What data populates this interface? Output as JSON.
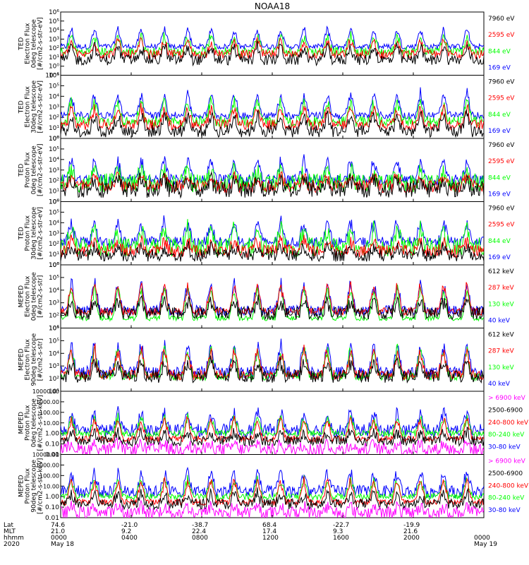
{
  "colors": {
    "black": "#000000",
    "red": "#ff0000",
    "green": "#00ff00",
    "blue": "#0000ff",
    "magenta": "#ff00ff"
  },
  "chart_data": {
    "type": "line",
    "title": "NOAA18",
    "grid": false,
    "footer": {
      "row_labels": [
        "Lat",
        "MLT",
        "hhmm",
        "2020"
      ],
      "ticks": [
        {
          "lat": "74.6",
          "mlt": "21.0",
          "hhmm": "0000",
          "date": "May 18"
        },
        {
          "lat": "-21.0",
          "mlt": "9.2",
          "hhmm": "0400",
          "date": ""
        },
        {
          "lat": "-38.7",
          "mlt": "22.4",
          "hhmm": "0800",
          "date": ""
        },
        {
          "lat": "68.4",
          "mlt": "17.4",
          "hhmm": "1200",
          "date": ""
        },
        {
          "lat": "-22.7",
          "mlt": "9.3",
          "hhmm": "1600",
          "date": ""
        },
        {
          "lat": "-19.9",
          "mlt": "21.6",
          "hhmm": "2000",
          "date": ""
        },
        {
          "lat": "",
          "mlt": "",
          "hhmm": "0000",
          "date": "May 19"
        }
      ]
    },
    "panels": [
      {
        "ylabel": [
          "TED",
          "Electron Flux",
          "0deg telescope",
          "[#/cm2-s-str-eV]"
        ],
        "log": true,
        "ylim": [
          0.1,
          1000000
        ],
        "ytick_labels": [
          "10⁻¹",
          "10⁰",
          "10¹",
          "10²",
          "10³",
          "10⁴",
          "10⁵",
          "10⁶"
        ],
        "series": [
          {
            "name": "7960 eV",
            "color": "black",
            "base": 5,
            "peak": 300,
            "noise": 0.6
          },
          {
            "name": "2595 eV",
            "color": "red",
            "base": 20,
            "peak": 1200,
            "noise": 0.5
          },
          {
            "name": "844 eV",
            "color": "green",
            "base": 40,
            "peak": 5000,
            "noise": 0.5
          },
          {
            "name": "169 eV",
            "color": "blue",
            "base": 150,
            "peak": 30000,
            "noise": 0.3
          }
        ]
      },
      {
        "ylabel": [
          "TED",
          "Electron Flux",
          "30deg telescope",
          "[#/cm2-s-str-eV]"
        ],
        "log": true,
        "ylim": [
          1,
          1000000
        ],
        "ytick_labels": [
          "10⁰",
          "10¹",
          "10²",
          "10³",
          "10⁴",
          "10⁵",
          "10⁶"
        ],
        "series": [
          {
            "name": "7960 eV",
            "color": "black",
            "base": 5,
            "peak": 300,
            "noise": 0.6
          },
          {
            "name": "2595 eV",
            "color": "red",
            "base": 20,
            "peak": 1500,
            "noise": 0.5
          },
          {
            "name": "844 eV",
            "color": "green",
            "base": 40,
            "peak": 8000,
            "noise": 0.5
          },
          {
            "name": "169 eV",
            "color": "blue",
            "base": 150,
            "peak": 40000,
            "noise": 0.35
          }
        ]
      },
      {
        "ylabel": [
          "TED",
          "Proton Flux",
          "0deg telescope",
          "[#/cm2-s-str-eV]"
        ],
        "log": true,
        "ylim": [
          1,
          1000000
        ],
        "ytick_labels": [
          "10⁰",
          "10¹",
          "10²",
          "10³",
          "10⁴",
          "10⁵",
          "10⁶"
        ],
        "series": [
          {
            "name": "7960 eV",
            "color": "black",
            "base": 15,
            "peak": 200,
            "noise": 0.8
          },
          {
            "name": "2595 eV",
            "color": "red",
            "base": 30,
            "peak": 400,
            "noise": 0.6
          },
          {
            "name": "844 eV",
            "color": "green",
            "base": 60,
            "peak": 1500,
            "noise": 0.9
          },
          {
            "name": "169 eV",
            "color": "blue",
            "base": 120,
            "peak": 20000,
            "noise": 0.5
          }
        ]
      },
      {
        "ylabel": [
          "TED",
          "Proton Flux",
          "30deg telescope",
          "[#/cm2-s-str-eV]"
        ],
        "log": true,
        "ylim": [
          1,
          1000000
        ],
        "ytick_labels": [
          "10⁰",
          "10¹",
          "10²",
          "10³",
          "10⁴",
          "10⁵",
          "10⁶"
        ],
        "series": [
          {
            "name": "7960 eV",
            "color": "black",
            "base": 8,
            "peak": 80,
            "noise": 0.6
          },
          {
            "name": "2595 eV",
            "color": "red",
            "base": 20,
            "peak": 300,
            "noise": 0.6
          },
          {
            "name": "844 eV",
            "color": "green",
            "base": 50,
            "peak": 6000,
            "noise": 0.9
          },
          {
            "name": "169 eV",
            "color": "blue",
            "base": 150,
            "peak": 30000,
            "noise": 0.5
          }
        ]
      },
      {
        "ylabel": [
          "MEPED",
          "Electron Flux",
          "0deg telescope",
          "[#/cm2-s-str]"
        ],
        "log": true,
        "ylim": [
          10,
          1000000
        ],
        "ytick_labels": [
          "10¹",
          "10²",
          "10³",
          "10⁴",
          "10⁵",
          "10⁶"
        ],
        "series": [
          {
            "name": "612 keV",
            "color": "black",
            "base": 150,
            "peak": 2000,
            "noise": 0.5
          },
          {
            "name": "287 keV",
            "color": "red",
            "base": 200,
            "peak": 60000,
            "noise": 0.3
          },
          {
            "name": "130 keV",
            "color": "green",
            "base": 60,
            "peak": 50000,
            "noise": 0.2
          },
          {
            "name": "40 keV",
            "color": "blue",
            "base": 250,
            "peak": 80000,
            "noise": 0.4
          }
        ]
      },
      {
        "ylabel": [
          "MEPED",
          "Electron Flux",
          "90deg telescope",
          "[#/cm2-s-str]"
        ],
        "log": true,
        "ylim": [
          10,
          1000000
        ],
        "ytick_labels": [
          "10¹",
          "10²",
          "10³",
          "10⁴",
          "10⁵",
          "10⁶"
        ],
        "series": [
          {
            "name": "612 keV",
            "color": "black",
            "base": 150,
            "peak": 3000,
            "noise": 0.5
          },
          {
            "name": "287 keV",
            "color": "red",
            "base": 200,
            "peak": 40000,
            "noise": 0.4
          },
          {
            "name": "130 keV",
            "color": "green",
            "base": 150,
            "peak": 60000,
            "noise": 0.3
          },
          {
            "name": "40 keV",
            "color": "blue",
            "base": 300,
            "peak": 150000,
            "noise": 0.5
          }
        ]
      },
      {
        "ylabel": [
          "MEPED",
          "Proton Flux",
          "0deg telescope",
          "[#/cm2-s-str-keV]"
        ],
        "log": true,
        "ylim": [
          0.01,
          10000
        ],
        "ytick_labels": [
          "0.01",
          "0.10",
          "1.00",
          "10.00",
          "100.00",
          "1000.00",
          "10000.00"
        ],
        "series": [
          {
            "name": "> 6900 keV",
            "color": "magenta",
            "base": 0.03,
            "peak": 0.15,
            "noise": 0.6
          },
          {
            "name": "2500-6900",
            "color": "black",
            "base": 0.2,
            "peak": 2,
            "noise": 0.5
          },
          {
            "name": "240-800 keV",
            "color": "red",
            "base": 0.3,
            "peak": 50,
            "noise": 0.3
          },
          {
            "name": "80-240 keV",
            "color": "green",
            "base": 1,
            "peak": 60,
            "noise": 0.3
          },
          {
            "name": "30-80 keV",
            "color": "blue",
            "base": 2,
            "peak": 200,
            "noise": 0.6
          }
        ]
      },
      {
        "ylabel": [
          "MEPED",
          "Proton Flux",
          "90deg telescope",
          "[#/cm2-s-str-keV]"
        ],
        "log": true,
        "ylim": [
          0.01,
          10000
        ],
        "ytick_labels": [
          "0.01",
          "0.10",
          "1.00",
          "10.00",
          "100.00",
          "1000.00",
          "10000.00"
        ],
        "series": [
          {
            "name": "> 6900 keV",
            "color": "magenta",
            "base": 0.03,
            "peak": 0.15,
            "noise": 0.6
          },
          {
            "name": "2500-6900",
            "color": "black",
            "base": 0.2,
            "peak": 3,
            "noise": 0.5
          },
          {
            "name": "240-800 keV",
            "color": "red",
            "base": 0.3,
            "peak": 80,
            "noise": 0.3
          },
          {
            "name": "80-240 keV",
            "color": "green",
            "base": 1,
            "peak": 80,
            "noise": 0.3
          },
          {
            "name": "30-80 keV",
            "color": "blue",
            "base": 3,
            "peak": 500,
            "noise": 0.6
          }
        ]
      }
    ]
  }
}
